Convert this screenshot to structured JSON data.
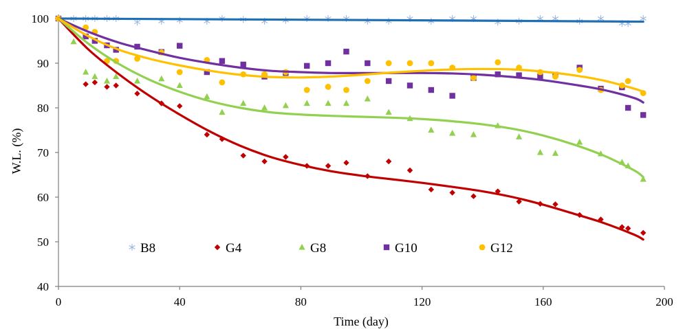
{
  "chart_data": {
    "type": "scatter",
    "title": "",
    "xlabel": "Time (day)",
    "ylabel": "W.L. (%)",
    "xlim": [
      0,
      200
    ],
    "ylim": [
      40,
      100
    ],
    "xticks": [
      0,
      40,
      80,
      120,
      160,
      200
    ],
    "yticks": [
      40,
      50,
      60,
      70,
      80,
      90,
      100
    ],
    "grid": false,
    "legend_position": "inside-bottom-left",
    "series": [
      {
        "name": "B8",
        "marker": "asterisk",
        "color": "#9db7e0",
        "trend_color": "#1f6fb5",
        "x": [
          0,
          5,
          9,
          12,
          16,
          19,
          26,
          34,
          40,
          49,
          54,
          61,
          68,
          75,
          82,
          89,
          95,
          102,
          109,
          116,
          123,
          130,
          137,
          145,
          152,
          159,
          164,
          172,
          179,
          186,
          188,
          193
        ],
        "y": [
          100,
          100,
          100,
          100,
          100,
          100,
          99.2,
          99.4,
          99.6,
          99.4,
          100,
          99.8,
          99.4,
          99.6,
          100,
          100,
          100,
          99.4,
          99.4,
          100,
          99.4,
          100,
          100,
          99.2,
          99.4,
          100,
          100,
          99.4,
          100,
          98.9,
          98.9,
          100
        ],
        "trend": [
          [
            0,
            100
          ],
          [
            60,
            99.8
          ],
          [
            120,
            99.6
          ],
          [
            193,
            99.3
          ]
        ]
      },
      {
        "name": "G4",
        "marker": "diamond",
        "color": "#c00000",
        "trend_color": "#c00000",
        "x": [
          0,
          9,
          12,
          16,
          19,
          26,
          34,
          40,
          49,
          54,
          61,
          68,
          75,
          82,
          89,
          95,
          102,
          109,
          116,
          123,
          130,
          137,
          145,
          152,
          159,
          164,
          172,
          179,
          186,
          188,
          193
        ],
        "y": [
          100,
          85.3,
          85.7,
          84.7,
          85,
          83.2,
          81,
          80.4,
          74,
          73,
          69.3,
          68,
          69,
          67,
          67,
          67.7,
          64.7,
          68,
          66,
          61.7,
          61,
          60.2,
          61.3,
          59,
          58.5,
          58.4,
          56,
          55,
          53.3,
          53,
          52
        ],
        "trend": [
          [
            0,
            100
          ],
          [
            10,
            93
          ],
          [
            20,
            87.5
          ],
          [
            30,
            82.7
          ],
          [
            40,
            78.5
          ],
          [
            50,
            74.7
          ],
          [
            60,
            71.5
          ],
          [
            70,
            69
          ],
          [
            80,
            67.2
          ],
          [
            90,
            65.8
          ],
          [
            100,
            64.8
          ],
          [
            110,
            64
          ],
          [
            120,
            63.2
          ],
          [
            130,
            62.3
          ],
          [
            140,
            61.3
          ],
          [
            150,
            60
          ],
          [
            160,
            58.3
          ],
          [
            170,
            56.3
          ],
          [
            180,
            54.2
          ],
          [
            190,
            51.6
          ],
          [
            193,
            50.5
          ]
        ]
      },
      {
        "name": "G8",
        "marker": "triangle",
        "color": "#92d050",
        "trend_color": "#92d050",
        "x": [
          0,
          5,
          9,
          12,
          16,
          19,
          26,
          34,
          40,
          49,
          54,
          61,
          68,
          75,
          82,
          89,
          95,
          102,
          109,
          116,
          123,
          130,
          137,
          145,
          152,
          159,
          164,
          172,
          179,
          186,
          188,
          193
        ],
        "y": [
          100,
          94.8,
          88,
          87,
          86,
          87,
          86,
          86.5,
          85,
          82.5,
          79,
          81,
          80,
          80.5,
          81,
          81,
          81,
          82,
          79,
          77.6,
          75,
          74.3,
          74,
          76,
          73.5,
          70,
          69.8,
          72.3,
          69.7,
          67.8,
          67,
          64
        ],
        "trend": [
          [
            0,
            100
          ],
          [
            10,
            94.3
          ],
          [
            20,
            89.8
          ],
          [
            30,
            86.3
          ],
          [
            40,
            83.6
          ],
          [
            50,
            81.5
          ],
          [
            60,
            80
          ],
          [
            70,
            79
          ],
          [
            80,
            78.5
          ],
          [
            90,
            78.2
          ],
          [
            100,
            78
          ],
          [
            110,
            77.8
          ],
          [
            120,
            77.5
          ],
          [
            130,
            77
          ],
          [
            140,
            76.3
          ],
          [
            150,
            75.3
          ],
          [
            160,
            73.8
          ],
          [
            170,
            71.8
          ],
          [
            180,
            69.3
          ],
          [
            190,
            66
          ],
          [
            193,
            64.5
          ]
        ]
      },
      {
        "name": "G10",
        "marker": "square",
        "color": "#7030a0",
        "trend_color": "#7030a0",
        "x": [
          0,
          9,
          12,
          16,
          19,
          26,
          34,
          40,
          49,
          54,
          61,
          68,
          75,
          82,
          89,
          95,
          102,
          109,
          116,
          123,
          130,
          137,
          145,
          152,
          159,
          164,
          172,
          179,
          186,
          188,
          193
        ],
        "y": [
          100,
          96,
          95,
          94,
          93,
          93.7,
          92.5,
          93.9,
          88,
          90.5,
          89.7,
          87,
          87.8,
          89.4,
          90,
          92.6,
          90,
          86,
          85,
          84,
          82.7,
          86.7,
          87.5,
          87.3,
          87,
          87.4,
          89,
          84.3,
          84.6,
          80,
          78.4
        ],
        "trend": [
          [
            0,
            100
          ],
          [
            10,
            97
          ],
          [
            20,
            94.6
          ],
          [
            30,
            92.8
          ],
          [
            40,
            91.2
          ],
          [
            50,
            90
          ],
          [
            60,
            89
          ],
          [
            70,
            88.3
          ],
          [
            80,
            88
          ],
          [
            90,
            87.8
          ],
          [
            100,
            87.8
          ],
          [
            110,
            87.8
          ],
          [
            120,
            87.8
          ],
          [
            130,
            87.7
          ],
          [
            140,
            87.4
          ],
          [
            150,
            86.9
          ],
          [
            160,
            86.2
          ],
          [
            170,
            85.2
          ],
          [
            180,
            84
          ],
          [
            190,
            82.2
          ],
          [
            193,
            81.2
          ]
        ]
      },
      {
        "name": "G12",
        "marker": "circle",
        "color": "#ffc000",
        "trend_color": "#ffc000",
        "x": [
          0,
          9,
          12,
          16,
          19,
          26,
          34,
          40,
          49,
          54,
          61,
          68,
          75,
          82,
          89,
          95,
          102,
          109,
          116,
          123,
          130,
          137,
          145,
          152,
          159,
          164,
          172,
          179,
          186,
          188,
          193
        ],
        "y": [
          100,
          98,
          97,
          90.5,
          90.5,
          91,
          92.4,
          88,
          90.7,
          85.7,
          87.5,
          87.5,
          88,
          84,
          84.7,
          84,
          86,
          90,
          90,
          90,
          89,
          86.7,
          90.2,
          89,
          88,
          87,
          88.5,
          84,
          85,
          86,
          83.3
        ],
        "trend": [
          [
            0,
            100
          ],
          [
            10,
            96
          ],
          [
            20,
            93
          ],
          [
            30,
            91
          ],
          [
            40,
            89.5
          ],
          [
            50,
            88.3
          ],
          [
            60,
            87.4
          ],
          [
            70,
            86.9
          ],
          [
            80,
            86.8
          ],
          [
            90,
            87
          ],
          [
            100,
            87.4
          ],
          [
            110,
            87.9
          ],
          [
            120,
            88.3
          ],
          [
            130,
            88.6
          ],
          [
            140,
            88.7
          ],
          [
            150,
            88.6
          ],
          [
            160,
            88.1
          ],
          [
            170,
            87.3
          ],
          [
            180,
            86.1
          ],
          [
            190,
            84.3
          ],
          [
            193,
            83.6
          ]
        ]
      }
    ]
  }
}
